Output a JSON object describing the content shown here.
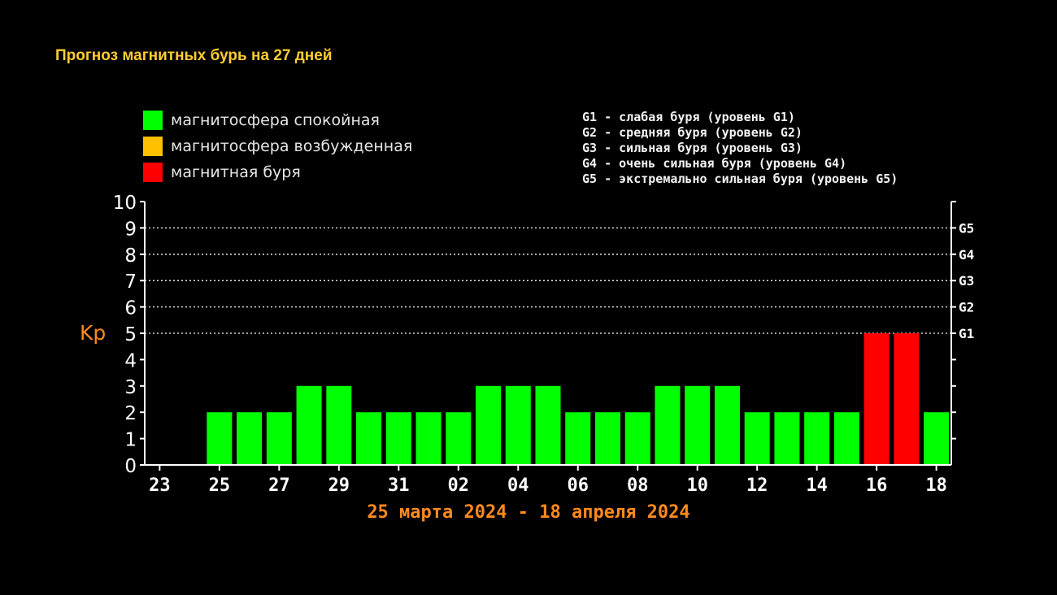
{
  "header": {
    "title": "Прогноз магнитных бурь на 27 дней"
  },
  "legend": {
    "items": [
      {
        "label": "магнитосфера спокойная",
        "color": "#00ff00"
      },
      {
        "label": "магнитосфера возбужденная",
        "color": "#ffc000"
      },
      {
        "label": "магнитная буря",
        "color": "#ff0000"
      }
    ]
  },
  "g_legend": {
    "items": [
      "G1 - слабая буря (уровень G1)",
      "G2 - средняя буря (уровень G2)",
      "G3 - сильная буря (уровень G3)",
      "G4 - очень сильная буря (уровень G4)",
      "G5 - экстремально сильная буря (уровень G5)"
    ]
  },
  "chart_data": {
    "type": "bar",
    "ylabel": "Kp",
    "ylim": [
      0,
      10
    ],
    "yticks": [
      "0",
      "1",
      "2",
      "3",
      "4",
      "5",
      "6",
      "7",
      "8",
      "9",
      "10"
    ],
    "right_axis": [
      {
        "label": "G1",
        "value": 5
      },
      {
        "label": "G2",
        "value": 6
      },
      {
        "label": "G3",
        "value": 7
      },
      {
        "label": "G4",
        "value": 8
      },
      {
        "label": "G5",
        "value": 9
      }
    ],
    "grid": "dotted horizontal at 5-9",
    "xtick_labels": [
      "23",
      "25",
      "27",
      "29",
      "31",
      "02",
      "04",
      "06",
      "08",
      "10",
      "12",
      "14",
      "16",
      "18"
    ],
    "categories": [
      "25",
      "26",
      "27",
      "28",
      "29",
      "30",
      "31",
      "01",
      "02",
      "03",
      "04",
      "05",
      "06",
      "07",
      "08",
      "09",
      "10",
      "11",
      "12",
      "13",
      "14",
      "15",
      "16",
      "17",
      "18"
    ],
    "values": [
      2,
      2,
      2,
      3,
      3,
      2,
      2,
      2,
      2,
      3,
      3,
      3,
      2,
      2,
      2,
      3,
      3,
      3,
      2,
      2,
      2,
      2,
      5,
      5,
      2
    ],
    "colors": [
      "#00ff00",
      "#00ff00",
      "#00ff00",
      "#00ff00",
      "#00ff00",
      "#00ff00",
      "#00ff00",
      "#00ff00",
      "#00ff00",
      "#00ff00",
      "#00ff00",
      "#00ff00",
      "#00ff00",
      "#00ff00",
      "#00ff00",
      "#00ff00",
      "#00ff00",
      "#00ff00",
      "#00ff00",
      "#00ff00",
      "#00ff00",
      "#00ff00",
      "#ff0000",
      "#ff0000",
      "#00ff00"
    ],
    "date_range": "25 марта 2024 - 18 апреля 2024"
  }
}
